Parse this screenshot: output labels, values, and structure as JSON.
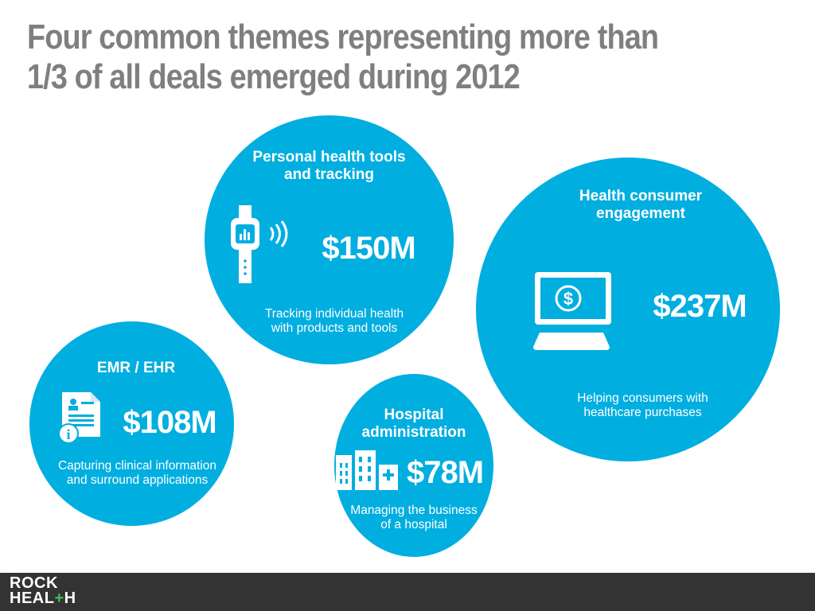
{
  "slide": {
    "title_lines": [
      "Four common themes representing more than",
      "1/3 of all deals emerged during 2012"
    ]
  },
  "themes": [
    {
      "id": "personal-health-tools",
      "title_lines": [
        "Personal health tools",
        "and tracking"
      ],
      "amount": "$150M",
      "description_lines": [
        "Tracking individual health",
        "with products and tools"
      ],
      "icon": "wearable-device-icon"
    },
    {
      "id": "health-consumer-engagement",
      "title_lines": [
        "Health consumer",
        "engagement"
      ],
      "amount": "$237M",
      "description_lines": [
        "Helping consumers with",
        "healthcare purchases"
      ],
      "icon": "computer-dollar-icon"
    },
    {
      "id": "emr-ehr",
      "title_lines": [
        "EMR / EHR"
      ],
      "amount": "$108M",
      "description_lines": [
        "Capturing clinical information",
        "and surround applications"
      ],
      "icon": "medical-record-icon"
    },
    {
      "id": "hospital-administration",
      "title_lines": [
        "Hospital",
        "administration"
      ],
      "amount": "$78M",
      "description_lines": [
        "Managing the business",
        "of a hospital"
      ],
      "icon": "hospital-buildings-icon"
    }
  ],
  "footer": {
    "logo_line1": "ROCK",
    "logo_line2_a": "HEAL",
    "logo_line2_b": "+",
    "logo_line2_c": "H"
  },
  "colors": {
    "bubble": "#00aee0",
    "title": "#7f7f7f",
    "footer": "#333333",
    "logo_accent": "#3dbd5d"
  }
}
